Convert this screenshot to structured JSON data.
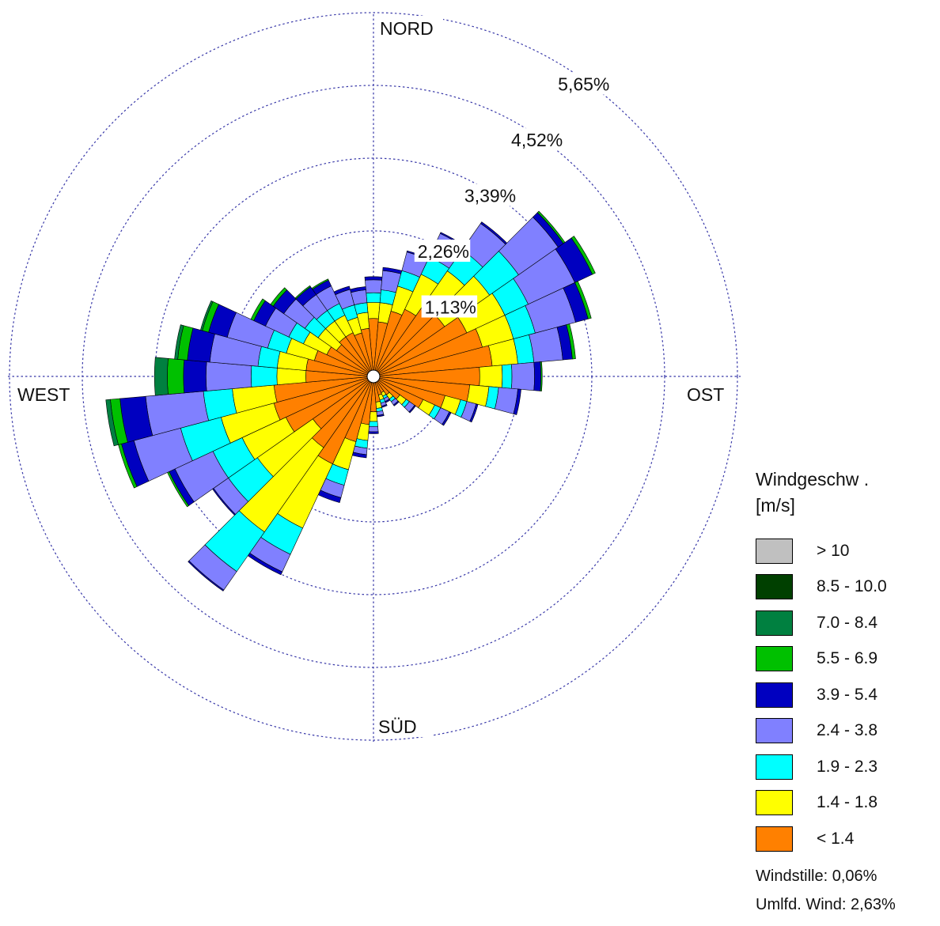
{
  "chart_data": {
    "type": "windrose",
    "directions": {
      "north": "NORD",
      "east": "OST",
      "south": "SÜD",
      "west": "WEST"
    },
    "rings": [
      {
        "value": 1.13,
        "label": "1,13%"
      },
      {
        "value": 2.26,
        "label": "2,26%"
      },
      {
        "value": 3.39,
        "label": "3,39%"
      },
      {
        "value": 4.52,
        "label": "4,52%"
      },
      {
        "value": 5.65,
        "label": "5,65%"
      }
    ],
    "sector_width_deg": 10,
    "bin_colors": [
      "#ff8000",
      "#ffff00",
      "#00ffff",
      "#8080ff",
      "#0000c0",
      "#00c000",
      "#008040",
      "#004000",
      "#c0c0c0"
    ],
    "sectors": [
      {
        "direction_deg": 0,
        "values": [
          0.9,
          0.25,
          0.15,
          0.2,
          0.05,
          0,
          0,
          0,
          0
        ]
      },
      {
        "direction_deg": 10,
        "values": [
          0.85,
          0.3,
          0.2,
          0.3,
          0.05,
          0,
          0,
          0,
          0
        ]
      },
      {
        "direction_deg": 20,
        "values": [
          1.05,
          0.4,
          0.25,
          0.3,
          0.02,
          0,
          0,
          0,
          0
        ]
      },
      {
        "direction_deg": 30,
        "values": [
          1.15,
          0.6,
          0.3,
          0.4,
          0.02,
          0,
          0,
          0,
          0
        ]
      },
      {
        "direction_deg": 40,
        "values": [
          1.3,
          0.7,
          0.4,
          0.5,
          0.03,
          0,
          0,
          0,
          0
        ]
      },
      {
        "direction_deg": 50,
        "values": [
          1.35,
          0.85,
          0.55,
          0.75,
          0.1,
          0.03,
          0,
          0,
          0
        ]
      },
      {
        "direction_deg": 60,
        "values": [
          1.6,
          0.65,
          0.4,
          0.8,
          0.3,
          0.05,
          0,
          0,
          0
        ]
      },
      {
        "direction_deg": 70,
        "values": [
          1.75,
          0.5,
          0.35,
          0.65,
          0.2,
          0.05,
          0,
          0,
          0
        ]
      },
      {
        "direction_deg": 80,
        "values": [
          1.85,
          0.4,
          0.25,
          0.45,
          0.15,
          0.05,
          0,
          0,
          0
        ]
      },
      {
        "direction_deg": 90,
        "values": [
          1.65,
          0.35,
          0.15,
          0.35,
          0.1,
          0.02,
          0,
          0,
          0
        ]
      },
      {
        "direction_deg": 100,
        "values": [
          1.5,
          0.3,
          0.15,
          0.3,
          0.05,
          0,
          0,
          0,
          0
        ]
      },
      {
        "direction_deg": 110,
        "values": [
          1.15,
          0.25,
          0.1,
          0.15,
          0.03,
          0,
          0,
          0,
          0
        ]
      },
      {
        "direction_deg": 120,
        "values": [
          0.85,
          0.2,
          0.1,
          0.15,
          0.03,
          0,
          0,
          0,
          0
        ]
      },
      {
        "direction_deg": 130,
        "values": [
          0.5,
          0.12,
          0.06,
          0.1,
          0.02,
          0,
          0,
          0,
          0
        ]
      },
      {
        "direction_deg": 140,
        "values": [
          0.35,
          0.08,
          0.05,
          0.06,
          0.02,
          0,
          0,
          0,
          0
        ]
      },
      {
        "direction_deg": 150,
        "values": [
          0.28,
          0.06,
          0.04,
          0.05,
          0.02,
          0,
          0,
          0,
          0
        ]
      },
      {
        "direction_deg": 160,
        "values": [
          0.3,
          0.08,
          0.05,
          0.05,
          0.02,
          0,
          0,
          0,
          0
        ]
      },
      {
        "direction_deg": 170,
        "values": [
          0.4,
          0.1,
          0.05,
          0.06,
          0.02,
          0,
          0,
          0,
          0
        ]
      },
      {
        "direction_deg": 180,
        "values": [
          0.55,
          0.15,
          0.08,
          0.08,
          0.03,
          0,
          0,
          0,
          0
        ]
      },
      {
        "direction_deg": 190,
        "values": [
          0.75,
          0.25,
          0.12,
          0.1,
          0.05,
          0,
          0,
          0,
          0
        ]
      },
      {
        "direction_deg": 200,
        "values": [
          1.05,
          0.45,
          0.25,
          0.2,
          0.08,
          0,
          0,
          0,
          0
        ]
      },
      {
        "direction_deg": 210,
        "values": [
          1.5,
          1.1,
          0.45,
          0.3,
          0.05,
          0,
          0,
          0,
          0
        ]
      },
      {
        "direction_deg": 220,
        "values": [
          1.35,
          1.6,
          0.75,
          0.35,
          0.02,
          0,
          0,
          0,
          0
        ]
      },
      {
        "direction_deg": 230,
        "values": [
          1.15,
          1.05,
          0.55,
          0.28,
          0.02,
          0,
          0,
          0,
          0
        ]
      },
      {
        "direction_deg": 240,
        "values": [
          1.5,
          0.75,
          0.5,
          0.65,
          0.1,
          0.03,
          0,
          0,
          0
        ]
      },
      {
        "direction_deg": 250,
        "values": [
          1.6,
          0.85,
          0.65,
          0.75,
          0.2,
          0.05,
          0,
          0,
          0
        ]
      },
      {
        "direction_deg": 260,
        "values": [
          1.55,
          0.65,
          0.45,
          0.9,
          0.4,
          0.15,
          0.07,
          0,
          0
        ]
      },
      {
        "direction_deg": 270,
        "values": [
          1.05,
          0.45,
          0.4,
          0.7,
          0.35,
          0.25,
          0.2,
          0,
          0
        ]
      },
      {
        "direction_deg": 280,
        "values": [
          1.05,
          0.45,
          0.3,
          0.75,
          0.35,
          0.15,
          0.05,
          0,
          0
        ]
      },
      {
        "direction_deg": 290,
        "values": [
          0.95,
          0.45,
          0.3,
          0.65,
          0.3,
          0.1,
          0.03,
          0,
          0
        ]
      },
      {
        "direction_deg": 300,
        "values": [
          0.8,
          0.4,
          0.25,
          0.4,
          0.2,
          0.05,
          0,
          0,
          0
        ]
      },
      {
        "direction_deg": 310,
        "values": [
          0.7,
          0.35,
          0.25,
          0.4,
          0.2,
          0.05,
          0,
          0,
          0
        ]
      },
      {
        "direction_deg": 320,
        "values": [
          0.75,
          0.3,
          0.2,
          0.3,
          0.15,
          0.02,
          0,
          0,
          0
        ]
      },
      {
        "direction_deg": 330,
        "values": [
          0.75,
          0.3,
          0.2,
          0.3,
          0.1,
          0.02,
          0,
          0,
          0
        ]
      },
      {
        "direction_deg": 340,
        "values": [
          0.7,
          0.25,
          0.2,
          0.25,
          0.05,
          0,
          0,
          0,
          0
        ]
      },
      {
        "direction_deg": 350,
        "values": [
          0.75,
          0.25,
          0.15,
          0.2,
          0.05,
          0,
          0,
          0,
          0
        ]
      }
    ],
    "legend": {
      "title_line1": "Windgeschw .",
      "title_line2": "[m/s]",
      "items": [
        {
          "label": "> 10",
          "color": "#c0c0c0"
        },
        {
          "label": "8.5 - 10.0",
          "color": "#004000"
        },
        {
          "label": "7.0 - 8.4",
          "color": "#008040"
        },
        {
          "label": "5.5 - 6.9",
          "color": "#00c000"
        },
        {
          "label": "3.9 - 5.4",
          "color": "#0000c0"
        },
        {
          "label": "2.4 - 3.8",
          "color": "#8080ff"
        },
        {
          "label": "1.9 - 2.3",
          "color": "#00ffff"
        },
        {
          "label": "1.4 - 1.8",
          "color": "#ffff00"
        },
        {
          "label": "< 1.4",
          "color": "#ff8000"
        }
      ]
    },
    "calm_text": "Windstille: 0,06%",
    "variable_text": "Umlfd. Wind: 2,63%"
  }
}
